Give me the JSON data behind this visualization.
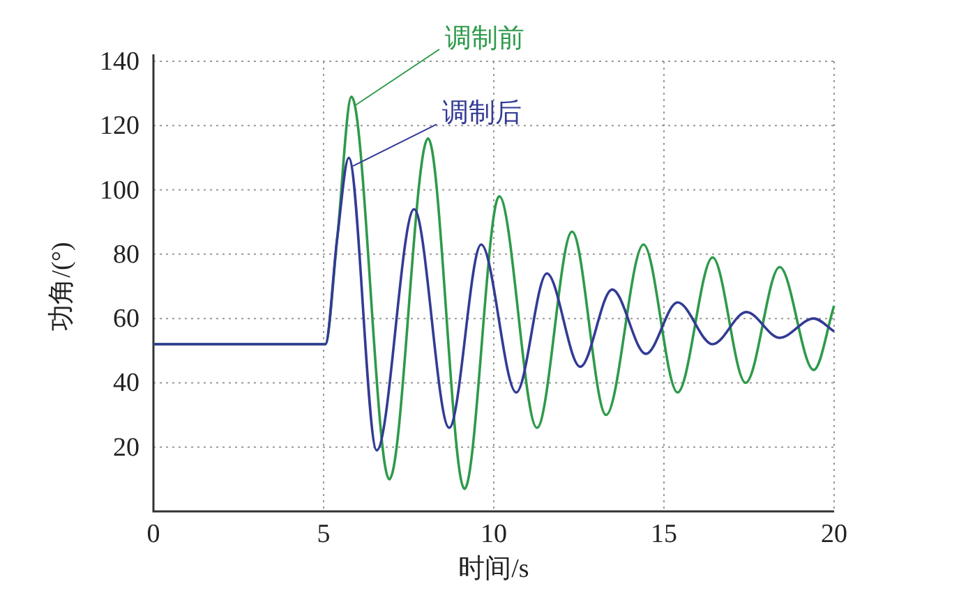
{
  "chart_data": {
    "type": "line",
    "xlabel": "时间/s",
    "ylabel": "功角/(°)",
    "xlim": [
      0,
      20
    ],
    "xticks": [
      0,
      5,
      10,
      15,
      20
    ],
    "ylim": [
      0,
      140
    ],
    "yticks": [
      20,
      40,
      60,
      80,
      100,
      120,
      140
    ],
    "grid": true,
    "line_style": "solid",
    "series": [
      {
        "name": "调制前",
        "color": "#2e9a4a",
        "x": [
          0,
          5.05,
          5.4,
          5.82,
          6.93,
          8.07,
          9.14,
          10.16,
          11.27,
          12.3,
          13.3,
          14.4,
          15.4,
          16.43,
          17.4,
          18.4,
          19.4,
          20
        ],
        "values": [
          52,
          52,
          85,
          129,
          10,
          116,
          7,
          98,
          26,
          87,
          30,
          83,
          37,
          79,
          40,
          76,
          44,
          64
        ]
      },
      {
        "name": "调制后",
        "color": "#333b94",
        "x": [
          0,
          5.05,
          5.4,
          5.74,
          6.56,
          7.66,
          8.69,
          9.63,
          10.66,
          11.56,
          12.54,
          13.48,
          14.47,
          15.4,
          16.43,
          17.42,
          18.4,
          19.4,
          20
        ],
        "values": [
          52,
          52,
          85,
          110,
          19,
          94,
          26,
          83,
          37,
          74,
          45,
          69,
          49,
          65,
          52,
          62,
          54,
          60,
          56
        ]
      }
    ]
  }
}
